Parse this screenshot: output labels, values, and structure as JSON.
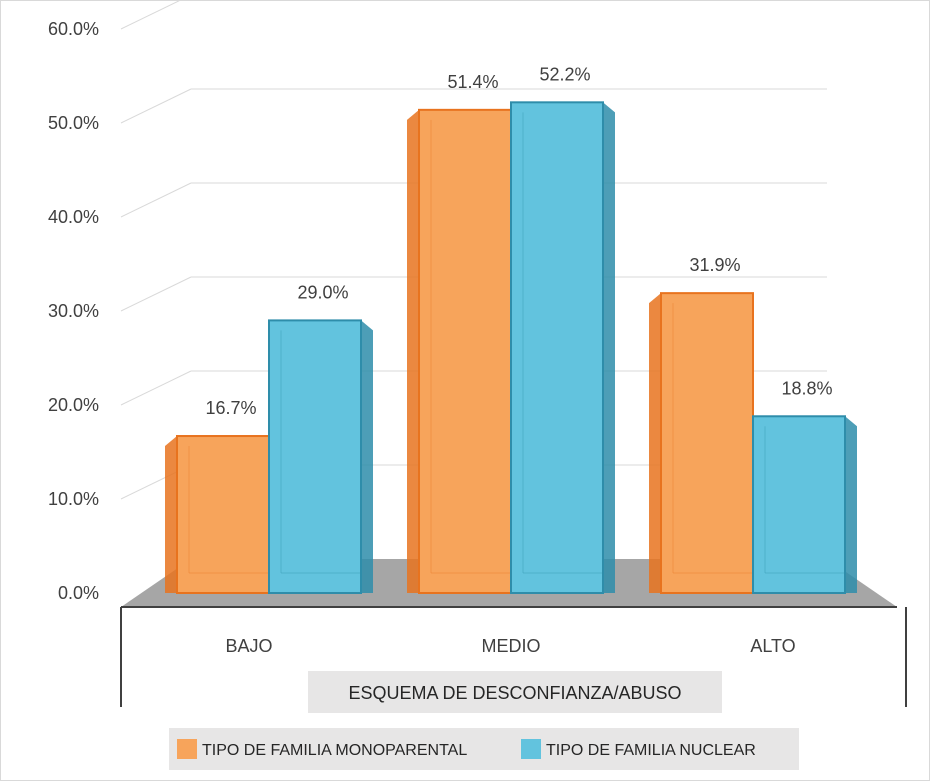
{
  "chart_data": {
    "type": "bar",
    "style": "3d-clustered-column",
    "categories": [
      "BAJO",
      "MEDIO",
      "ALTO"
    ],
    "series": [
      {
        "name": "TIPO DE FAMILIA MONOPARENTAL",
        "values": [
          16.7,
          51.4,
          31.9
        ],
        "color": "#F7A45B",
        "edge": "#E8731E"
      },
      {
        "name": "TIPO DE FAMILIA NUCLEAR",
        "values": [
          29.0,
          52.2,
          18.8
        ],
        "color": "#62C3DE",
        "edge": "#2E8DAA"
      }
    ],
    "data_labels": [
      [
        "16.7%",
        "51.4%",
        "31.9%"
      ],
      [
        "29.0%",
        "52.2%",
        "18.8%"
      ]
    ],
    "xlabel": "ESQUEMA DE  DESCONFIANZA/ABUSO",
    "ylabel": "",
    "ylim": [
      0,
      60
    ],
    "yticks": [
      "0.0%",
      "10.0%",
      "20.0%",
      "30.0%",
      "40.0%",
      "50.0%",
      "60.0%"
    ],
    "grid": true,
    "legend_position": "bottom"
  }
}
